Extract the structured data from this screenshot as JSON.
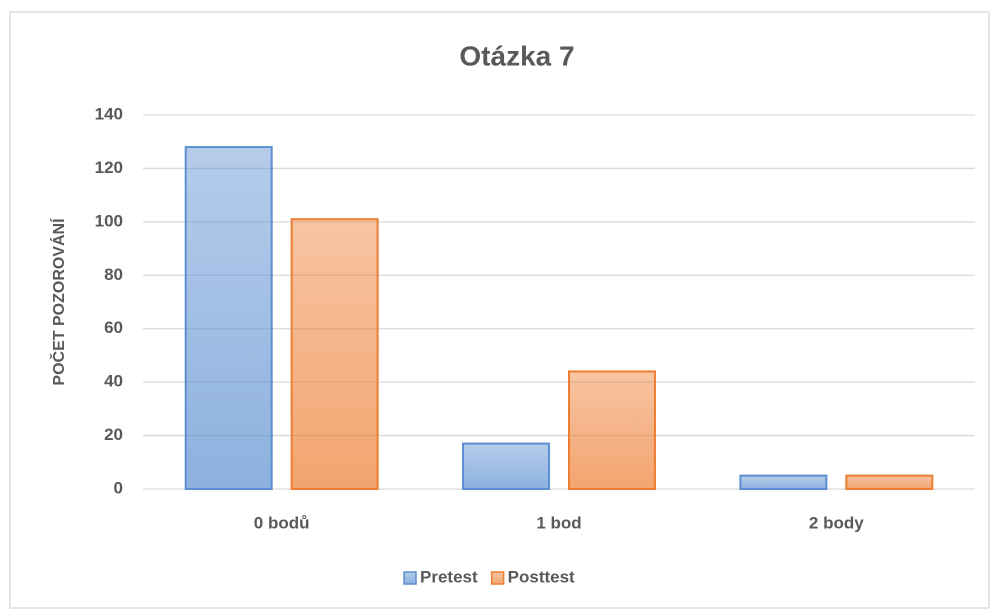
{
  "chart_data": {
    "type": "bar",
    "title": "Otázka 7",
    "y_label": "POČET POZOROVÁNÍ",
    "categories": [
      "0 bodů",
      "1 bod",
      "2 body"
    ],
    "series": [
      {
        "name": "Pretest",
        "color": "#5b8fd0",
        "values": [
          128,
          17,
          5
        ]
      },
      {
        "name": "Posttest",
        "color": "#ed7d31",
        "values": [
          101,
          44,
          5
        ]
      }
    ],
    "ylim": [
      0,
      140
    ],
    "yticks": [
      0,
      20,
      40,
      60,
      80,
      100,
      120,
      140
    ],
    "grid": true,
    "legend": "bottom"
  }
}
